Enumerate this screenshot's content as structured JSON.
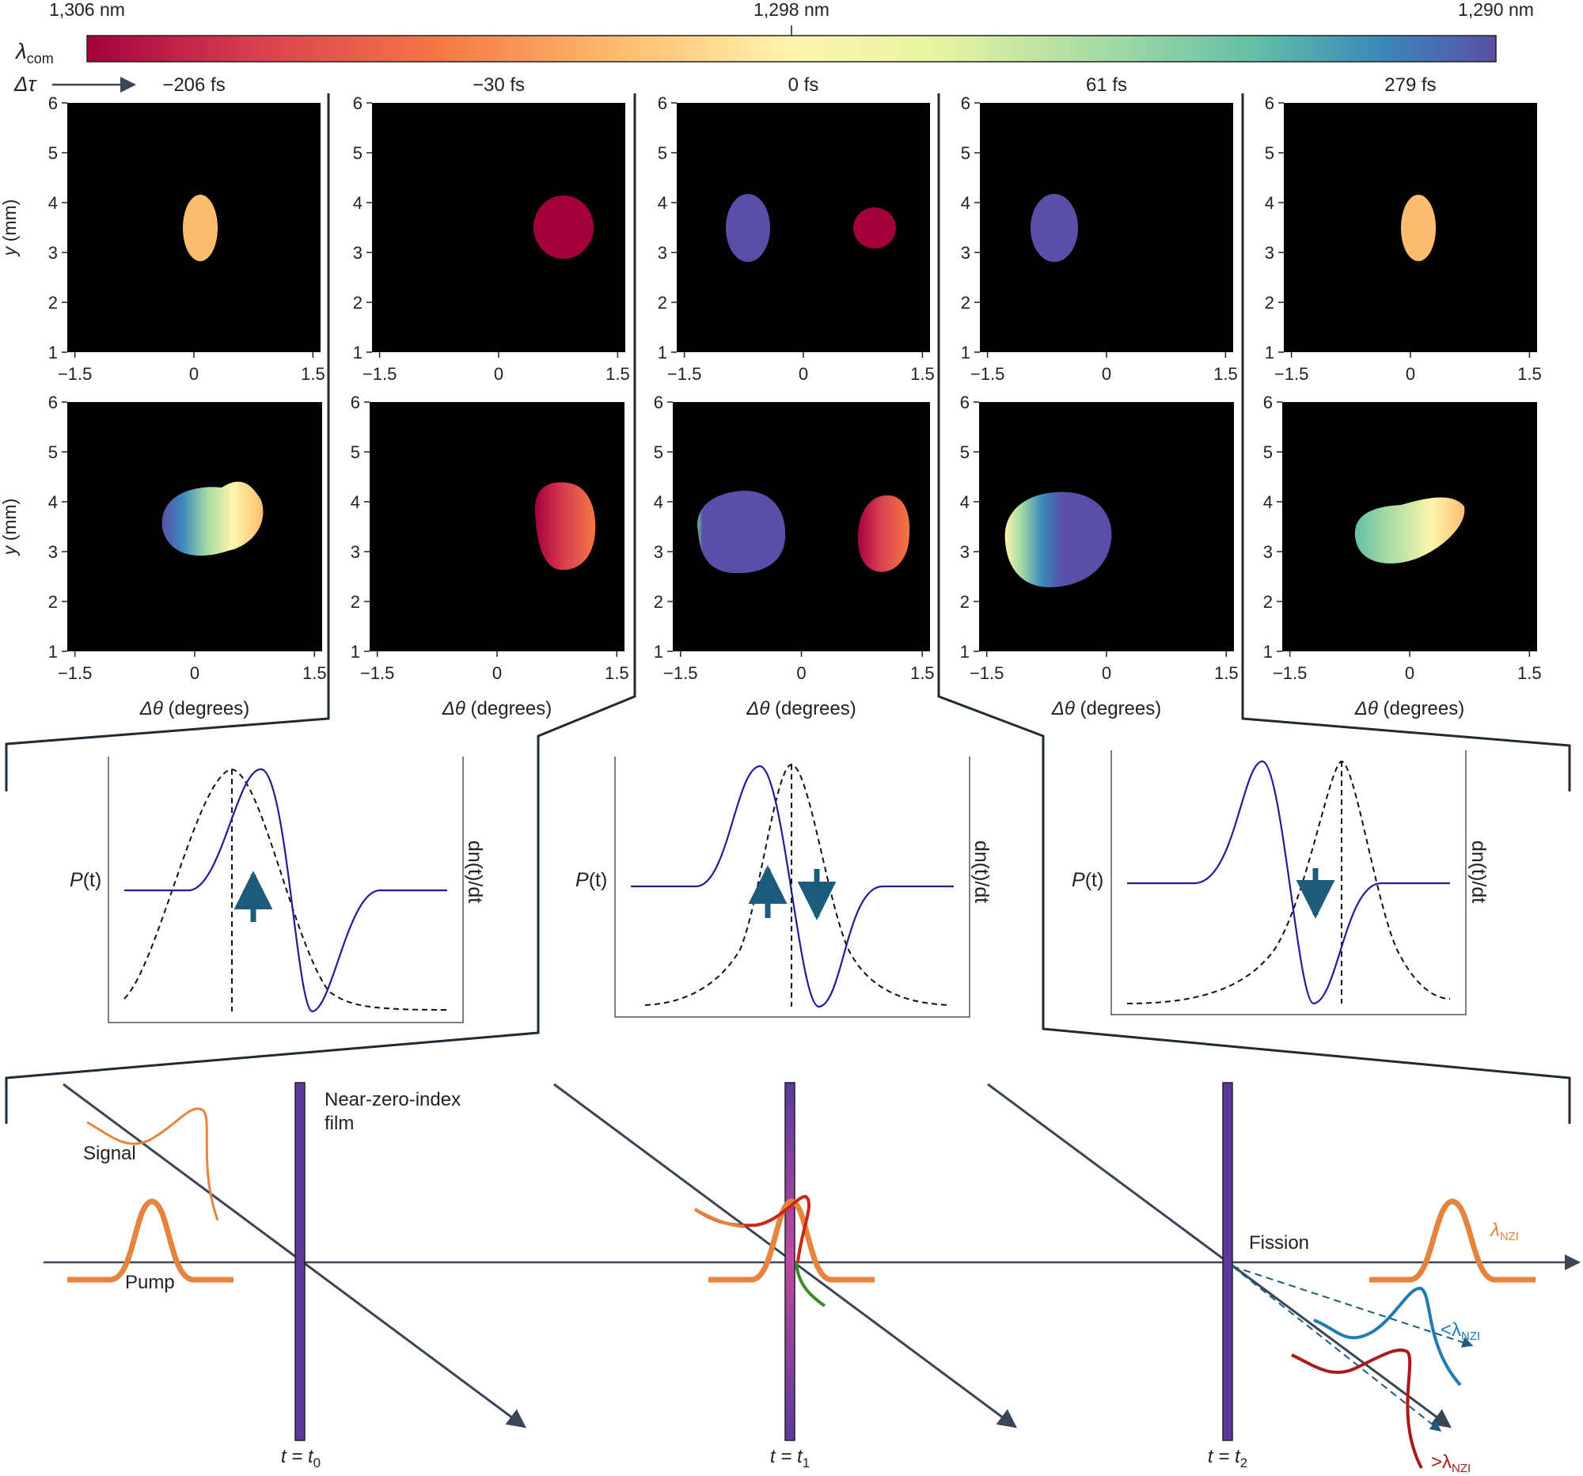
{
  "colorbar": {
    "symbol": "λ",
    "sub": "com",
    "left_label": "1,306 nm",
    "mid_label": "1,298 nm",
    "right_label": "1,290 nm",
    "colors": [
      "#a5003e",
      "#d9404f",
      "#f57745",
      "#fdbd6f",
      "#fef5ad",
      "#e8f5a0",
      "#a6dba4",
      "#62bfa7",
      "#3a88bb",
      "#5a4fa6"
    ]
  },
  "delay": {
    "symbol": "Δτ",
    "labels": [
      "−206 fs",
      "−30 fs",
      "0 fs",
      "61 fs",
      "279 fs"
    ]
  },
  "axes": {
    "y_ticks": [
      "6",
      "5",
      "4",
      "3",
      "2",
      "1"
    ],
    "x_ticks": [
      "−1.5",
      "0",
      "1.5"
    ],
    "ylabel_var": "y",
    "ylabel_unit": " (mm)",
    "xlabel_var": "Δθ",
    "xlabel_unit": " (degrees)"
  },
  "pulse": {
    "left_label_var": "P",
    "left_label_rest": "(t)",
    "right_label": "dn(t)/dt",
    "line_color": "#1e1e96",
    "arrow_color": "#1c5c7a"
  },
  "bottom": {
    "film_label_1": "Near-zero-index",
    "film_label_2": "film",
    "signal": "Signal",
    "pump": "Pump",
    "fission": "Fission",
    "t0": "t = t",
    "t0_sub": "0",
    "t1": "t = t",
    "t1_sub": "1",
    "t2": "t = t",
    "t2_sub": "2",
    "lnzi": "λ",
    "lnzi_sub": "NZI",
    "lt_lnzi": "<λ",
    "gt_lnzi": ">λ",
    "orange": "#e5843f",
    "blue": "#1f7ab5",
    "red": "#aa1a1a",
    "film_color": "#5b3a9a"
  }
}
